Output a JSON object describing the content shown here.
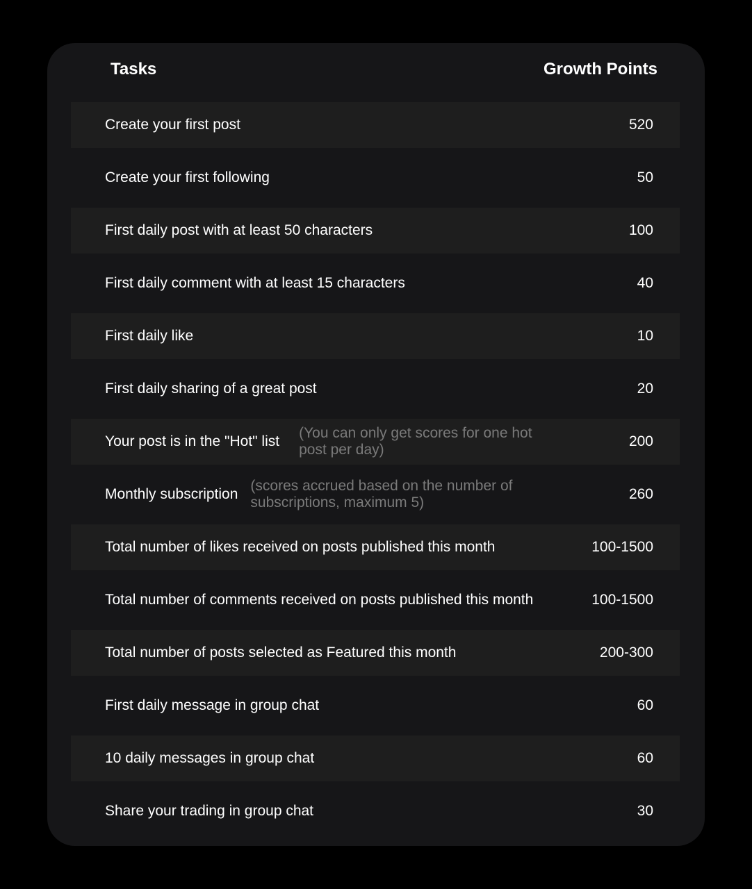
{
  "header": {
    "tasks": "Tasks",
    "points": "Growth Points"
  },
  "rows": [
    {
      "task": "Create your first post",
      "note": "",
      "points": "520"
    },
    {
      "task": "Create your first following",
      "note": "",
      "points": "50"
    },
    {
      "task": "First daily post with at least 50 characters",
      "note": "",
      "points": "100"
    },
    {
      "task": "First daily comment with at least 15 characters",
      "note": "",
      "points": "40"
    },
    {
      "task": "First daily like",
      "note": "",
      "points": "10"
    },
    {
      "task": "First daily sharing of a great post",
      "note": "",
      "points": "20"
    },
    {
      "task": "Your post is in the \"Hot\" list",
      "note": "(You can only get scores for one hot post per day)",
      "points": "200"
    },
    {
      "task": "Monthly subscription",
      "note": "(scores accrued based on the number of subscriptions, maximum 5)",
      "points": "260"
    },
    {
      "task": "Total number of likes received on posts published this month",
      "note": "",
      "points": "100-1500"
    },
    {
      "task": "Total number of comments received on posts published this month",
      "note": "",
      "points": "100-1500"
    },
    {
      "task": "Total number of posts selected as Featured this month",
      "note": "",
      "points": "200-300"
    },
    {
      "task": "First daily message in group chat",
      "note": "",
      "points": "60"
    },
    {
      "task": "10 daily messages in group chat",
      "note": "",
      "points": "60"
    },
    {
      "task": "Share your trading in group chat",
      "note": "",
      "points": "30"
    }
  ]
}
